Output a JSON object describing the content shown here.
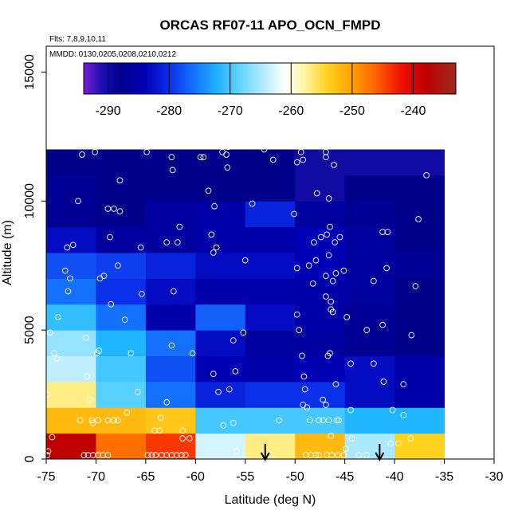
{
  "chart_data": {
    "type": "heatmap",
    "title": "ORCAS RF07-11 APO_OCN_FMPD",
    "subtitle_flights": "Flts: 7,8,9,10,11",
    "subtitle_dates": "MMDD: 0130,0205,0208,0210,0212",
    "xlabel": "Latitude (deg N)",
    "ylabel": "Altitude (m)",
    "xlim": [
      -75,
      -30
    ],
    "ylim": [
      0,
      16000
    ],
    "x_ticks": [
      -75,
      -70,
      -65,
      -60,
      -55,
      -50,
      -45,
      -40,
      -35,
      -30
    ],
    "x_tick_labels": [
      "-75",
      "-70",
      "-65",
      "-60",
      "-55",
      "-50",
      "-45",
      "-40",
      "-35",
      "-30"
    ],
    "y_ticks": [
      0,
      5000,
      10000,
      15000
    ],
    "y_tick_labels": [
      "0",
      "5000",
      "10000",
      "15000"
    ],
    "colorbar": {
      "range": [
        -294,
        -233
      ],
      "ticks": [
        -290,
        -280,
        -270,
        -260,
        -250,
        -240
      ],
      "tick_labels": [
        "-290",
        "-280",
        "-270",
        "-260",
        "-250",
        "-240"
      ],
      "stops": [
        {
          "v": -294,
          "c": "#7a1fd8"
        },
        {
          "v": -291,
          "c": "#1a0fb0"
        },
        {
          "v": -288,
          "c": "#00008a"
        },
        {
          "v": -284,
          "c": "#0000b4"
        },
        {
          "v": -280,
          "c": "#0a2fe8"
        },
        {
          "v": -276,
          "c": "#1470ff"
        },
        {
          "v": -272,
          "c": "#1fb5ff"
        },
        {
          "v": -268,
          "c": "#6ad8ff"
        },
        {
          "v": -264,
          "c": "#bfeeff"
        },
        {
          "v": -261,
          "c": "#ffffff"
        },
        {
          "v": -258,
          "c": "#fff6a8"
        },
        {
          "v": -254,
          "c": "#ffd21e"
        },
        {
          "v": -250,
          "c": "#ffa000"
        },
        {
          "v": -246,
          "c": "#ff6000"
        },
        {
          "v": -242,
          "c": "#f01000"
        },
        {
          "v": -238,
          "c": "#c00000"
        },
        {
          "v": -233,
          "c": "#9a2a20"
        }
      ]
    },
    "lat_edges": [
      -75,
      -70,
      -65,
      -60,
      -55,
      -50,
      -45,
      -40,
      -35
    ],
    "alt_edges": [
      0,
      1000,
      2000,
      3000,
      4000,
      5000,
      6000,
      7000,
      8000,
      9000,
      10000,
      11000,
      12000
    ],
    "grid_values": [
      [
        -238,
        -247,
        -244,
        -263,
        -257,
        -252,
        -265,
        -254
      ],
      [
        -252,
        -252,
        -253,
        -270,
        -270,
        -270,
        -272,
        -272
      ],
      [
        -257,
        -269,
        -276,
        -281,
        -280,
        -280,
        -283,
        -285
      ],
      [
        -264,
        -270,
        -278,
        -284,
        -285,
        -284,
        -283,
        -285
      ],
      [
        -266,
        -272,
        -276,
        -283,
        -286,
        -286,
        -287,
        -288
      ],
      [
        -271,
        -276,
        -285,
        -277,
        -283,
        -285,
        -287,
        -288
      ],
      [
        -276,
        -280,
        -283,
        -285,
        -285,
        -285,
        -286,
        -288
      ],
      [
        -278,
        -279,
        -281,
        -283,
        -283,
        -284,
        -286,
        -287
      ],
      [
        -283,
        -286,
        -286,
        -285,
        -285,
        -284,
        -286,
        -288
      ],
      [
        -287,
        -288,
        -286,
        -285,
        -281,
        -286,
        -287,
        -288
      ],
      [
        -287,
        -288,
        -288,
        -288,
        -288,
        -290,
        -288,
        -288
      ],
      [
        -288,
        -288,
        -288,
        -288,
        -288,
        -290,
        -290,
        -290
      ]
    ],
    "arrows_lat": [
      -53,
      -41.5
    ],
    "points": [
      [
        -74.9,
        150
      ],
      [
        -74.8,
        300
      ],
      [
        -74.4,
        850
      ],
      [
        -74.9,
        2500
      ],
      [
        -74.2,
        4100
      ],
      [
        -74.6,
        4900
      ],
      [
        -73.8,
        5500
      ],
      [
        -73.9,
        3900
      ],
      [
        -72.8,
        6500
      ],
      [
        -73.1,
        7300
      ],
      [
        -72.6,
        7000
      ],
      [
        -72.9,
        8200
      ],
      [
        -72.3,
        8300
      ],
      [
        -71.8,
        10000
      ],
      [
        -71.4,
        11800
      ],
      [
        -70.1,
        11900
      ],
      [
        -71.2,
        150
      ],
      [
        -70.8,
        150
      ],
      [
        -70.3,
        150
      ],
      [
        -69.8,
        150
      ],
      [
        -69.3,
        150
      ],
      [
        -68.8,
        150
      ],
      [
        -70.4,
        1500
      ],
      [
        -71.6,
        1500
      ],
      [
        -70.3,
        1400
      ],
      [
        -69.8,
        1500
      ],
      [
        -68.8,
        1500
      ],
      [
        -68.2,
        1500
      ],
      [
        -67.8,
        1500
      ],
      [
        -70.6,
        2300
      ],
      [
        -70.9,
        3200
      ],
      [
        -69.7,
        4200
      ],
      [
        -69.9,
        4100
      ],
      [
        -71.0,
        4700
      ],
      [
        -69.6,
        7000
      ],
      [
        -69.2,
        7100
      ],
      [
        -68.5,
        6000
      ],
      [
        -67.8,
        7500
      ],
      [
        -68.6,
        8600
      ],
      [
        -68.2,
        9700
      ],
      [
        -67.6,
        9600
      ],
      [
        -68.8,
        9700
      ],
      [
        -67.6,
        10800
      ],
      [
        -66.9,
        1800
      ],
      [
        -66.5,
        4100
      ],
      [
        -65.8,
        2600
      ],
      [
        -65.4,
        6400
      ],
      [
        -65.5,
        8200
      ],
      [
        -67.1,
        5400
      ],
      [
        -64.9,
        11900
      ],
      [
        -64.8,
        150
      ],
      [
        -64.4,
        150
      ],
      [
        -64.0,
        150
      ],
      [
        -63.4,
        150
      ],
      [
        -62.9,
        150
      ],
      [
        -62.4,
        150
      ],
      [
        -61.9,
        150
      ],
      [
        -61.4,
        150
      ],
      [
        -61.0,
        150
      ],
      [
        -64.1,
        1100
      ],
      [
        -63.6,
        1100
      ],
      [
        -61.3,
        1100
      ],
      [
        -61.3,
        800
      ],
      [
        -60.6,
        800
      ],
      [
        -63.5,
        1600
      ],
      [
        -62.9,
        2200
      ],
      [
        -62.4,
        4400
      ],
      [
        -62.2,
        6500
      ],
      [
        -62.3,
        11200
      ],
      [
        -62.4,
        11700
      ],
      [
        -62.9,
        8400
      ],
      [
        -61.8,
        8400
      ],
      [
        -61.6,
        9000
      ],
      [
        -60.3,
        4100
      ],
      [
        -59.5,
        11700
      ],
      [
        -59.2,
        11700
      ],
      [
        -58.7,
        10400
      ],
      [
        -58.1,
        9800
      ],
      [
        -58.2,
        8000
      ],
      [
        -57.9,
        8200
      ],
      [
        -58.4,
        8700
      ],
      [
        -57.3,
        11900
      ],
      [
        -56.9,
        11800
      ],
      [
        -56.7,
        12100
      ],
      [
        -57.2,
        1300
      ],
      [
        -56.2,
        1400
      ],
      [
        -56.6,
        2700
      ],
      [
        -56.0,
        3400
      ],
      [
        -56.2,
        4600
      ],
      [
        -55.2,
        4900
      ],
      [
        -55.0,
        7700
      ],
      [
        -55.9,
        300
      ],
      [
        -57.7,
        2600
      ],
      [
        -58.2,
        3300
      ],
      [
        -54.3,
        9900
      ],
      [
        -53.1,
        12000
      ],
      [
        -52.2,
        11600
      ],
      [
        -51.6,
        1500
      ],
      [
        -52.4,
        150
      ],
      [
        -50.1,
        9500
      ],
      [
        -49.8,
        7400
      ],
      [
        -49.8,
        5600
      ],
      [
        -49.6,
        5000
      ],
      [
        -49.3,
        4000
      ],
      [
        -49.1,
        3200
      ],
      [
        -49.0,
        2700
      ],
      [
        -49.2,
        2100
      ],
      [
        -48.8,
        2000
      ],
      [
        -48.5,
        1500
      ],
      [
        -47.6,
        150
      ],
      [
        -48.9,
        150
      ],
      [
        -48.4,
        150
      ],
      [
        -47.9,
        150
      ],
      [
        -46.8,
        150
      ],
      [
        -46.3,
        150
      ],
      [
        -45.7,
        150
      ],
      [
        -45.1,
        150
      ],
      [
        -49.8,
        11500
      ],
      [
        -49.2,
        11600
      ],
      [
        -46.9,
        11700
      ],
      [
        -46.9,
        11900
      ],
      [
        -46.1,
        11400
      ],
      [
        -47.8,
        10300
      ],
      [
        -46.6,
        10100
      ],
      [
        -48.1,
        8400
      ],
      [
        -47.4,
        8600
      ],
      [
        -46.8,
        8700
      ],
      [
        -46.5,
        9000
      ],
      [
        -46.0,
        8400
      ],
      [
        -45.5,
        8600
      ],
      [
        -46.6,
        7900
      ],
      [
        -46.9,
        7100
      ],
      [
        -45.9,
        7200
      ],
      [
        -45.1,
        7300
      ],
      [
        -48.6,
        7500
      ],
      [
        -47.9,
        7700
      ],
      [
        -48.2,
        6800
      ],
      [
        -46.9,
        6300
      ],
      [
        -46.4,
        5800
      ],
      [
        -46.2,
        6900
      ],
      [
        -46.4,
        6100
      ],
      [
        -46.2,
        5700
      ],
      [
        -44.8,
        5500
      ],
      [
        -46.7,
        4000
      ],
      [
        -46.5,
        4100
      ],
      [
        -44.4,
        3700
      ],
      [
        -45.9,
        2900
      ],
      [
        -47.2,
        2300
      ],
      [
        -46.9,
        2100
      ],
      [
        -47.6,
        1500
      ],
      [
        -47.2,
        1500
      ],
      [
        -46.6,
        1500
      ],
      [
        -45.8,
        1500
      ],
      [
        -45.6,
        1500
      ],
      [
        -46.4,
        900
      ],
      [
        -44.4,
        1900
      ],
      [
        -44.9,
        400
      ],
      [
        -43.6,
        150
      ],
      [
        -42.8,
        5000
      ],
      [
        -42.1,
        6900
      ],
      [
        -42.1,
        3700
      ],
      [
        -41.2,
        5200
      ],
      [
        -40.2,
        1900
      ],
      [
        -41.2,
        8800
      ],
      [
        -40.7,
        8800
      ],
      [
        -41.1,
        3000
      ],
      [
        -39.6,
        600
      ],
      [
        -40.8,
        7400
      ],
      [
        -39.1,
        2900
      ],
      [
        -38.3,
        4800
      ],
      [
        -37.9,
        6700
      ],
      [
        -37.6,
        9300
      ],
      [
        -36.8,
        11000
      ],
      [
        -38.4,
        800
      ],
      [
        -39.1,
        1700
      ],
      [
        -40.4,
        600
      ],
      [
        -42.8,
        150
      ],
      [
        -44.3,
        800
      ],
      [
        -56.8,
        11300
      ],
      [
        -49.4,
        11900
      ]
    ]
  }
}
